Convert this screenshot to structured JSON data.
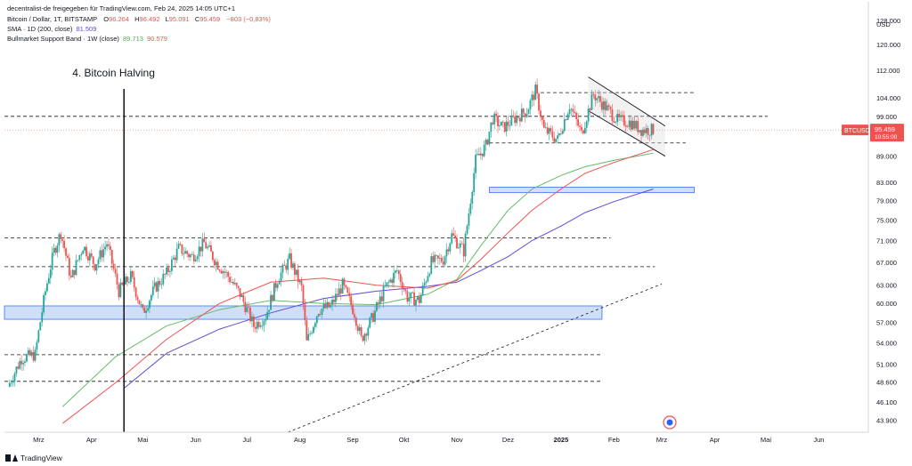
{
  "header": {
    "line1": {
      "source": "decentralist-de freigegeben für TradingView.com, Feb 24, 2025 14:05 UTC+1"
    },
    "line2": {
      "symbol": "Bitcoin / Dollar, 1T, BITSTAMP",
      "open_label": "O",
      "open": "96.264",
      "high_label": "H",
      "high": "96.492",
      "low_label": "L",
      "low": "95.091",
      "close_label": "C",
      "close": "95.459",
      "change": "−803 (−0,83%)"
    },
    "line3": {
      "name": "SMA · 1D (200, close)",
      "value": "81.509"
    },
    "line4": {
      "name": "Bullmarket Support Band · 1W (close)",
      "value1": "89.713",
      "value2": "90.579"
    }
  },
  "colors": {
    "up": "#26a69a",
    "down": "#ef5350",
    "sma200": "#5b4fd6",
    "band_green": "#66bb6a",
    "band_red": "#ef5350",
    "zone_fill": "#c9dcf7",
    "zone_stroke": "#2962ff",
    "price_badge": "#ef5350"
  },
  "footer": {
    "brand": "TradingView"
  },
  "chart_data": {
    "type": "candlestick",
    "currency_label": "USD",
    "y_ticks": [
      "128.000",
      "120.000",
      "112.000",
      "104.000",
      "99.000",
      "95.000",
      "89.000",
      "83.000",
      "79.000",
      "75.000",
      "71.000",
      "67.000",
      "63.000",
      "60.000",
      "57.000",
      "54.000",
      "51.000",
      "48.600",
      "46.100",
      "43.900"
    ],
    "y_scale": "log",
    "x_ticks": [
      "Mrz",
      "Apr",
      "Mai",
      "Jun",
      "Jul",
      "Aug",
      "Sep",
      "Okt",
      "Nov",
      "Dez",
      "2025",
      "Feb",
      "Mrz",
      "Apr",
      "Mai",
      "Jun"
    ],
    "x_range": [
      "2024-02-10",
      "2025-06-30"
    ],
    "y_range": [
      42500,
      132000
    ],
    "annotation": {
      "text": "4. Bitcoin Halving",
      "date": "2024-04-20"
    },
    "price_label": {
      "symbol": "BTCUSD",
      "price": "95.459",
      "countdown": "10:55:00"
    },
    "series": [
      {
        "name": "BTCUSD",
        "points": [
          [
            "2024-02-12",
            48000
          ],
          [
            "2024-02-20",
            51800
          ],
          [
            "2024-02-28",
            52300
          ],
          [
            "2024-03-05",
            62000
          ],
          [
            "2024-03-10",
            69000
          ],
          [
            "2024-03-14",
            72500
          ],
          [
            "2024-03-20",
            64000
          ],
          [
            "2024-03-27",
            70000
          ],
          [
            "2024-04-03",
            66500
          ],
          [
            "2024-04-10",
            70500
          ],
          [
            "2024-04-17",
            62000
          ],
          [
            "2024-04-24",
            64500
          ],
          [
            "2024-05-01",
            58500
          ],
          [
            "2024-05-08",
            62500
          ],
          [
            "2024-05-15",
            65000
          ],
          [
            "2024-05-22",
            69500
          ],
          [
            "2024-05-30",
            68000
          ],
          [
            "2024-06-06",
            70500
          ],
          [
            "2024-06-13",
            67000
          ],
          [
            "2024-06-20",
            64500
          ],
          [
            "2024-06-27",
            61500
          ],
          [
            "2024-07-05",
            56500
          ],
          [
            "2024-07-12",
            58000
          ],
          [
            "2024-07-19",
            64000
          ],
          [
            "2024-07-26",
            67500
          ],
          [
            "2024-08-02",
            62500
          ],
          [
            "2024-08-05",
            54000
          ],
          [
            "2024-08-12",
            59000
          ],
          [
            "2024-08-19",
            59500
          ],
          [
            "2024-08-26",
            63000
          ],
          [
            "2024-09-02",
            58500
          ],
          [
            "2024-09-06",
            54500
          ],
          [
            "2024-09-13",
            58000
          ],
          [
            "2024-09-20",
            62500
          ],
          [
            "2024-09-27",
            65500
          ],
          [
            "2024-10-03",
            61000
          ],
          [
            "2024-10-10",
            60500
          ],
          [
            "2024-10-17",
            67000
          ],
          [
            "2024-10-24",
            67500
          ],
          [
            "2024-10-29",
            72000
          ],
          [
            "2024-11-05",
            69000
          ],
          [
            "2024-11-08",
            76500
          ],
          [
            "2024-11-12",
            88000
          ],
          [
            "2024-11-18",
            91500
          ],
          [
            "2024-11-22",
            98500
          ],
          [
            "2024-11-28",
            96000
          ],
          [
            "2024-12-05",
            98500
          ],
          [
            "2024-12-12",
            100500
          ],
          [
            "2024-12-17",
            106000
          ],
          [
            "2024-12-22",
            95500
          ],
          [
            "2024-12-30",
            93000
          ],
          [
            "2025-01-06",
            102000
          ],
          [
            "2025-01-13",
            94500
          ],
          [
            "2025-01-20",
            105000
          ],
          [
            "2025-01-27",
            101500
          ],
          [
            "2025-02-03",
            98000
          ],
          [
            "2025-02-10",
            97500
          ],
          [
            "2025-02-17",
            95500
          ],
          [
            "2025-02-24",
            95459
          ]
        ]
      },
      {
        "name": "SMA 200",
        "points": [
          [
            "2024-04-20",
            47800
          ],
          [
            "2024-05-15",
            52500
          ],
          [
            "2024-06-15",
            56000
          ],
          [
            "2024-07-15",
            58500
          ],
          [
            "2024-08-15",
            60800
          ],
          [
            "2024-09-15",
            62000
          ],
          [
            "2024-10-15",
            62800
          ],
          [
            "2024-11-01",
            63500
          ],
          [
            "2024-11-15",
            65500
          ],
          [
            "2024-12-01",
            68000
          ],
          [
            "2024-12-15",
            71000
          ],
          [
            "2025-01-01",
            73800
          ],
          [
            "2025-01-15",
            76500
          ],
          [
            "2025-02-01",
            78800
          ],
          [
            "2025-02-24",
            81509
          ]
        ]
      },
      {
        "name": "Bullmarket Support Band (green)",
        "points": [
          [
            "2024-03-15",
            45500
          ],
          [
            "2024-04-15",
            52000
          ],
          [
            "2024-05-15",
            56500
          ],
          [
            "2024-06-15",
            59000
          ],
          [
            "2024-07-15",
            60500
          ],
          [
            "2024-08-15",
            60000
          ],
          [
            "2024-09-15",
            59800
          ],
          [
            "2024-10-15",
            61500
          ],
          [
            "2024-11-01",
            64000
          ],
          [
            "2024-11-15",
            70000
          ],
          [
            "2024-12-01",
            77000
          ],
          [
            "2024-12-15",
            81500
          ],
          [
            "2025-01-01",
            84500
          ],
          [
            "2025-01-15",
            86500
          ],
          [
            "2025-02-01",
            88000
          ],
          [
            "2025-02-24",
            89713
          ]
        ]
      },
      {
        "name": "Bullmarket Support Band (red)",
        "points": [
          [
            "2024-03-15",
            43500
          ],
          [
            "2024-04-15",
            48500
          ],
          [
            "2024-05-15",
            54500
          ],
          [
            "2024-06-15",
            60000
          ],
          [
            "2024-07-15",
            63500
          ],
          [
            "2024-08-15",
            64200
          ],
          [
            "2024-09-15",
            63000
          ],
          [
            "2024-10-15",
            62500
          ],
          [
            "2024-11-01",
            63800
          ],
          [
            "2024-11-15",
            67500
          ],
          [
            "2024-12-01",
            72500
          ],
          [
            "2024-12-15",
            77000
          ],
          [
            "2025-01-01",
            81500
          ],
          [
            "2025-01-15",
            85000
          ],
          [
            "2025-02-01",
            87500
          ],
          [
            "2025-02-24",
            90579
          ]
        ]
      }
    ],
    "dashed_levels": [
      {
        "price": 99000,
        "from": "2024-02-10",
        "to": "2025-05-02"
      },
      {
        "price": 92200,
        "from": "2024-11-20",
        "to": "2025-03-15"
      },
      {
        "price": 71500,
        "from": "2024-02-10",
        "to": "2025-01-30"
      },
      {
        "price": 66200,
        "from": "2024-02-10",
        "to": "2025-02-25"
      },
      {
        "price": 52300,
        "from": "2024-02-10",
        "to": "2025-01-25"
      },
      {
        "price": 48700,
        "from": "2024-02-10",
        "to": "2025-01-25"
      },
      {
        "price": 105500,
        "from": "2024-12-20",
        "to": "2025-03-20"
      }
    ],
    "zones": [
      {
        "low": 57500,
        "high": 59600,
        "from": "2024-02-10",
        "to": "2025-01-25"
      },
      {
        "low": 80700,
        "high": 81900,
        "from": "2024-11-20",
        "to": "2025-03-20"
      }
    ],
    "channel": {
      "upper": [
        [
          "2025-01-17",
          110000
        ],
        [
          "2025-03-03",
          96500
        ]
      ],
      "lower": [
        [
          "2025-01-17",
          100500
        ],
        [
          "2025-03-03",
          89000
        ]
      ]
    },
    "trendline": [
      [
        "2024-07-25",
        42500
      ],
      [
        "2025-03-01",
        63200
      ]
    ]
  }
}
